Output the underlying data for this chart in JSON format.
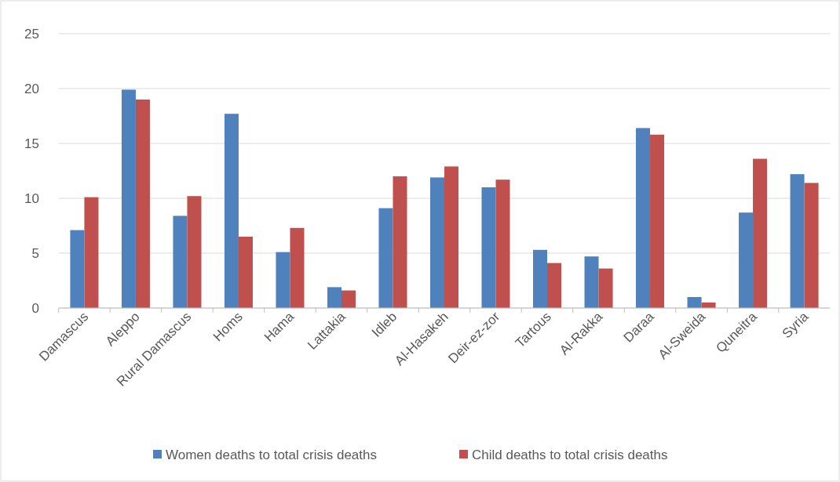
{
  "chart_data": {
    "type": "bar",
    "categories": [
      "Damascus",
      "Aleppo",
      "Rural Damascus",
      "Homs",
      "Hama",
      "Lattakia",
      "Idleb",
      "Al-Hasakeh",
      "Deir-ez-zor",
      "Tartous",
      "Al-Rakka",
      "Daraa",
      "Al-Sweida",
      "Quneitra",
      "Syria"
    ],
    "series": [
      {
        "name": "Women deaths to total crisis deaths",
        "color": "#4f81bd",
        "values": [
          7.1,
          19.9,
          8.4,
          17.7,
          5.1,
          1.9,
          9.1,
          11.9,
          11.0,
          5.3,
          4.7,
          16.4,
          1.0,
          8.7,
          12.2
        ]
      },
      {
        "name": "Child deaths to total crisis deaths",
        "color": "#c0504d",
        "values": [
          10.1,
          19.0,
          10.2,
          6.5,
          7.3,
          1.6,
          12.0,
          12.9,
          11.7,
          4.1,
          3.6,
          15.8,
          0.5,
          13.6,
          11.4
        ]
      }
    ],
    "ylim": [
      0,
      25
    ],
    "yticks": [
      0,
      5,
      10,
      15,
      20,
      25
    ],
    "grid": "y",
    "legend": "bottom"
  }
}
